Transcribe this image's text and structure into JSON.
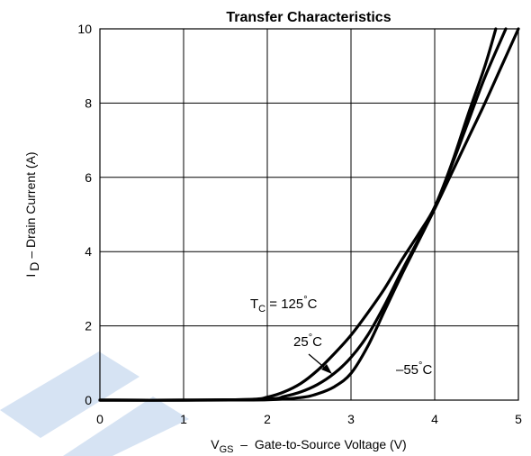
{
  "chart_data": {
    "type": "line",
    "title": "Transfer Characteristics",
    "xlabel": {
      "main": "V",
      "sub": "GS",
      "rest": "  –  Gate-to-Source Voltage (V)"
    },
    "ylabel": {
      "main": "I",
      "sub": "D",
      "rest": " – Drain Current (A)"
    },
    "xlim": [
      0,
      5
    ],
    "ylim": [
      0,
      10
    ],
    "xticks": [
      "0",
      "1",
      "2",
      "3",
      "4",
      "5"
    ],
    "yticks": [
      "0",
      "2",
      "4",
      "6",
      "8",
      "10"
    ],
    "grid": true,
    "series": [
      {
        "name": "T_C = 125°C",
        "x": [
          0,
          1.0,
          1.8,
          2.0,
          2.2,
          2.4,
          2.6,
          2.8,
          3.0,
          3.2,
          3.4,
          3.6,
          3.8,
          4.0,
          4.2,
          4.4,
          4.6,
          4.73
        ],
        "y": [
          0,
          0,
          0.02,
          0.08,
          0.22,
          0.45,
          0.8,
          1.25,
          1.75,
          2.35,
          3.0,
          3.75,
          4.45,
          5.2,
          6.35,
          7.7,
          9.0,
          10
        ]
      },
      {
        "name": "25°C",
        "x": [
          0,
          1.0,
          2.0,
          2.2,
          2.4,
          2.6,
          2.8,
          3.0,
          3.2,
          3.4,
          3.6,
          3.8,
          4.0,
          4.2,
          4.4,
          4.6,
          4.85
        ],
        "y": [
          0,
          0,
          0.03,
          0.1,
          0.22,
          0.42,
          0.72,
          1.15,
          1.75,
          2.55,
          3.45,
          4.3,
          5.2,
          6.3,
          7.5,
          8.7,
          10
        ]
      },
      {
        "name": "–55°C",
        "x": [
          0,
          1.0,
          2.0,
          2.4,
          2.6,
          2.8,
          3.0,
          3.2,
          3.4,
          3.6,
          3.8,
          4.0,
          4.2,
          4.4,
          4.6,
          4.8,
          5.0
        ],
        "y": [
          0,
          0,
          0.01,
          0.07,
          0.17,
          0.36,
          0.72,
          1.45,
          2.4,
          3.35,
          4.25,
          5.15,
          6.1,
          7.05,
          8.0,
          9.0,
          10
        ]
      }
    ],
    "annotations": {
      "tc125": {
        "main": "T",
        "sub": "C",
        "rest": " = 125",
        "deg": "°",
        "unit": "C"
      },
      "t25": {
        "main": "25",
        "deg": "°",
        "unit": "C"
      },
      "tm55": {
        "main": "–55",
        "deg": "°",
        "unit": "C"
      }
    }
  }
}
